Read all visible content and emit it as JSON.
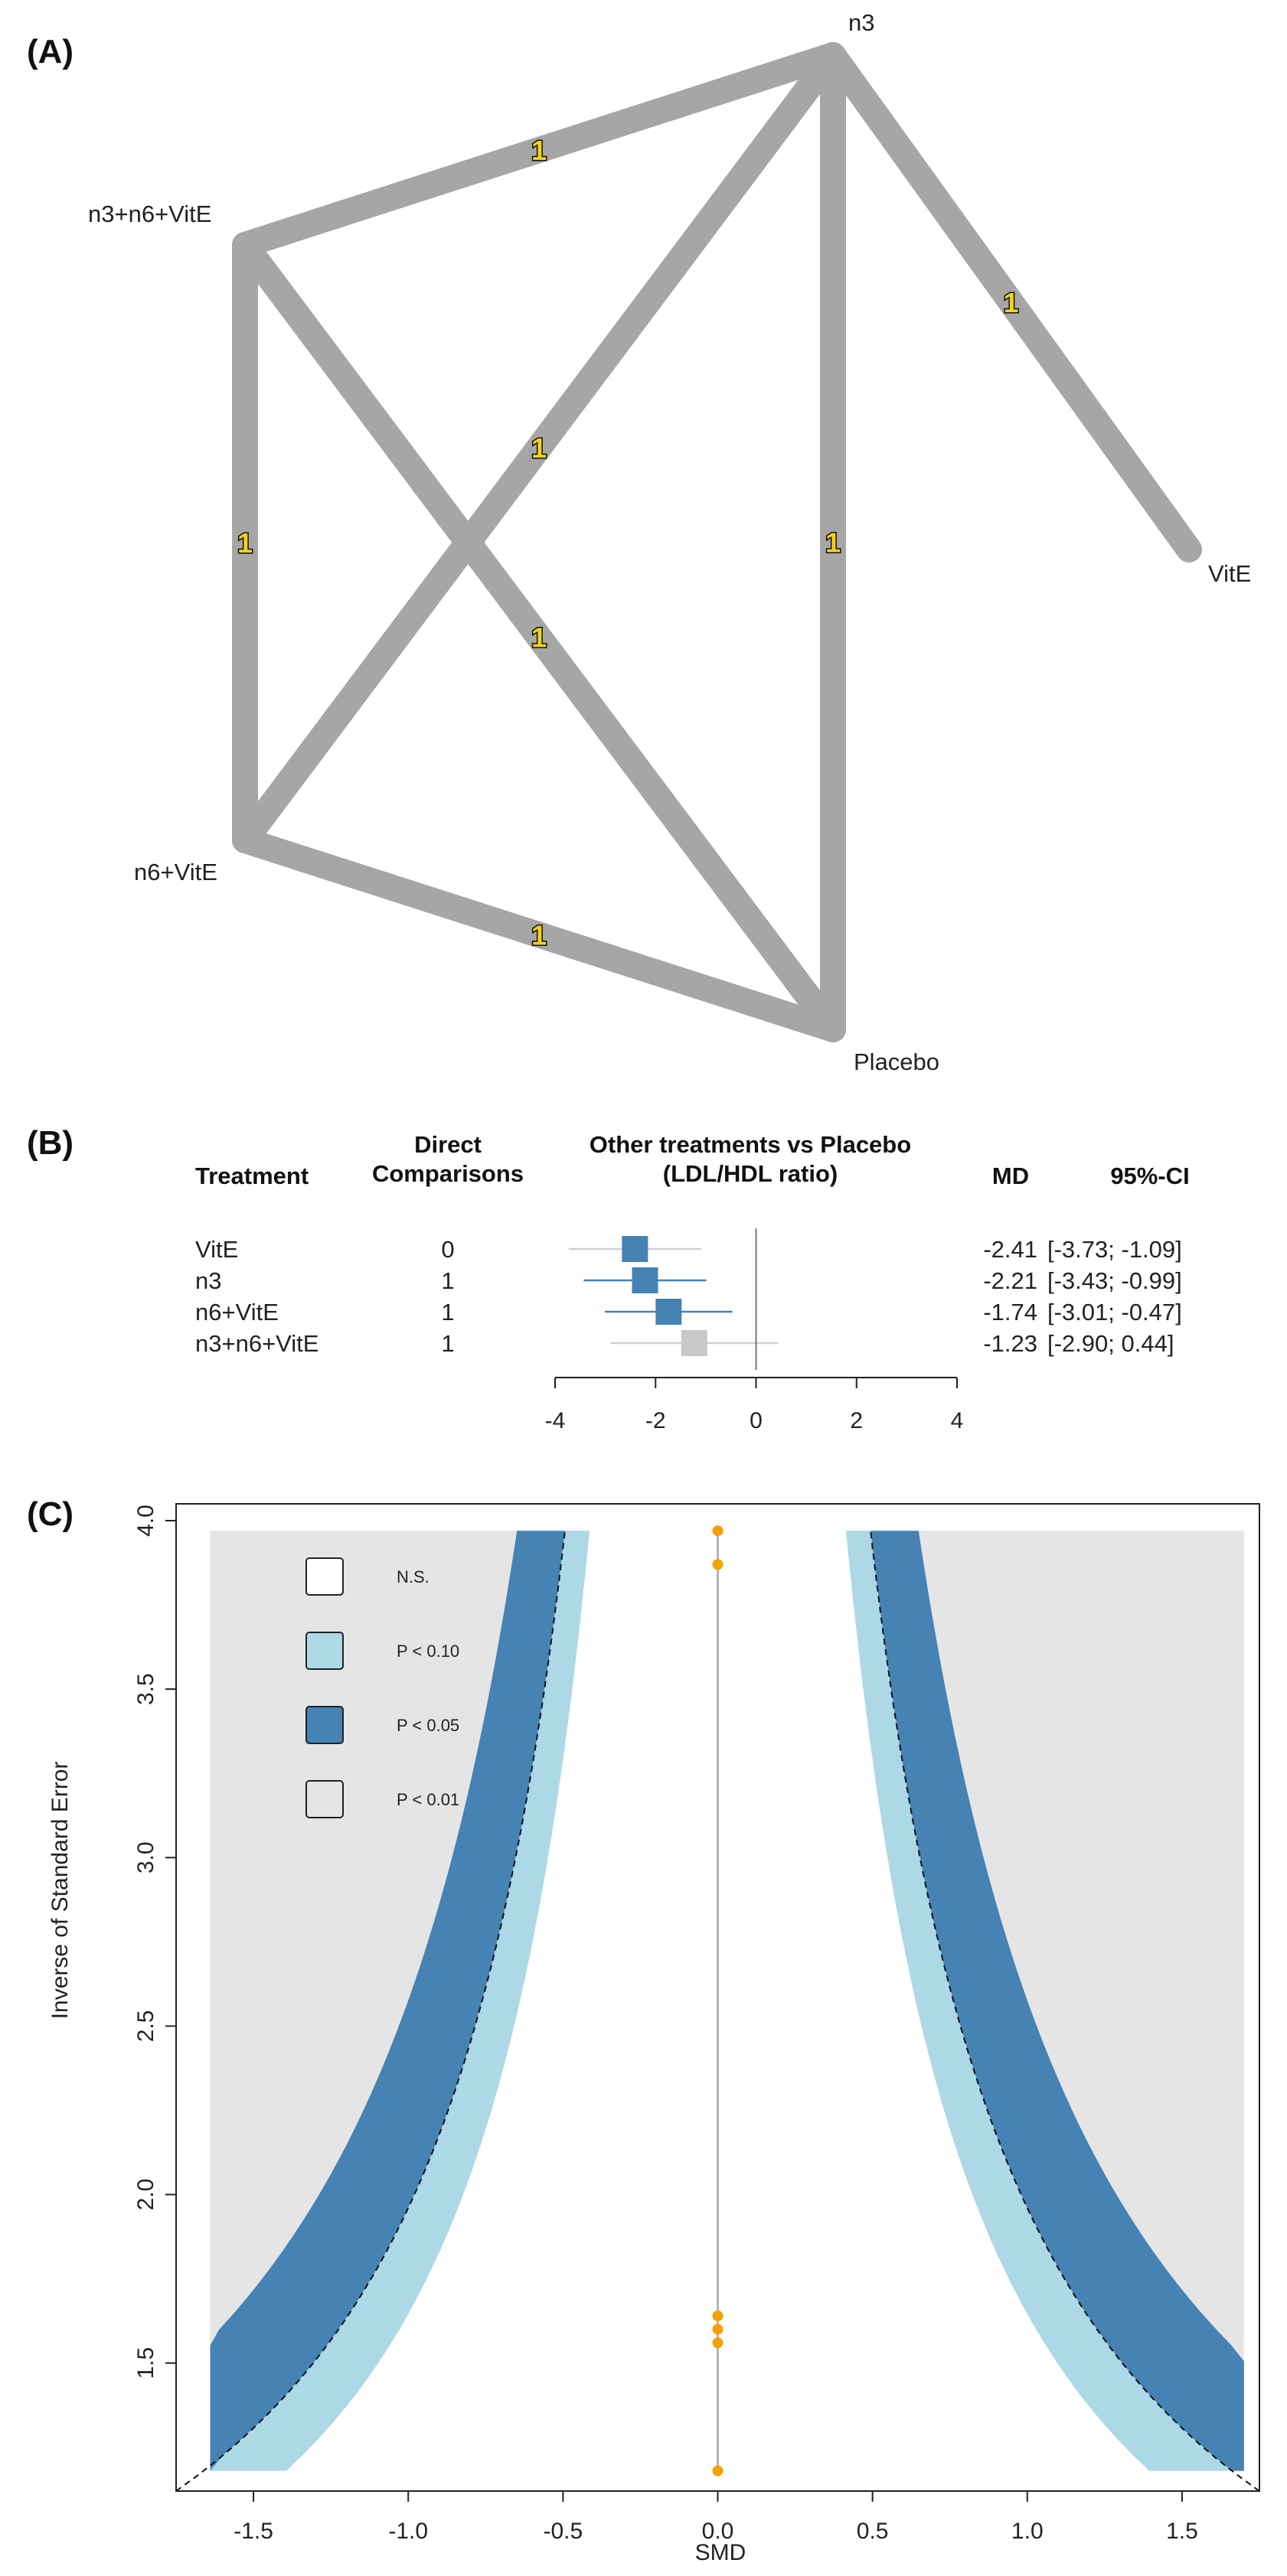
{
  "panels": {
    "a": "(A)",
    "b": "(B)",
    "c": "(C)"
  },
  "colors": {
    "edge": "#a6a6a6",
    "point_blue": "#4682b4",
    "point_grey": "#c8c8c8",
    "ci_blue": "#4682b4",
    "ci_grey": "#d0d0d0",
    "band_p10": "#add8e6",
    "band_p05": "#4682b4",
    "band_p01": "#e5e5e5",
    "study_point": "#f5a000",
    "count_fill": "#f2d21c"
  },
  "chart_data": [
    {
      "type": "network",
      "nodes": [
        "n3",
        "n3+n6+VitE",
        "VitE",
        "n6+VitE",
        "Placebo"
      ],
      "edges": [
        {
          "from": "n3+n6+VitE",
          "to": "n3",
          "studies": "1"
        },
        {
          "from": "n3",
          "to": "VitE",
          "studies": "1"
        },
        {
          "from": "n3",
          "to": "n6+VitE",
          "studies": "1"
        },
        {
          "from": "n3",
          "to": "Placebo",
          "studies": "1"
        },
        {
          "from": "n3+n6+VitE",
          "to": "n6+VitE",
          "studies": "1"
        },
        {
          "from": "n3+n6+VitE",
          "to": "Placebo",
          "studies": "1"
        },
        {
          "from": "n6+VitE",
          "to": "Placebo",
          "studies": "1"
        }
      ]
    },
    {
      "type": "forest",
      "headers": {
        "treatment": "Treatment",
        "direct_1": "Direct",
        "direct_2": "Comparisons",
        "effect_1": "Other treatments vs Placebo",
        "effect_2": "(LDL/HDL ratio)",
        "md": "MD",
        "ci": "95%-CI"
      },
      "xlim": [
        -4,
        4
      ],
      "ticks": [
        -4,
        -2,
        0,
        2,
        4
      ],
      "tick_labels": [
        "-4",
        "-2",
        "0",
        "2",
        "4"
      ],
      "reference": 0,
      "rows": [
        {
          "treatment": "VitE",
          "direct": "0",
          "md": -2.41,
          "lo": -3.73,
          "hi": -1.09,
          "md_text": "-2.41",
          "ci_text": "[-3.73; -1.09]",
          "color": "grey_ci"
        },
        {
          "treatment": "n3",
          "direct": "1",
          "md": -2.21,
          "lo": -3.43,
          "hi": -0.99,
          "md_text": "-2.21",
          "ci_text": "[-3.43; -0.99]",
          "color": "blue"
        },
        {
          "treatment": "n6+VitE",
          "direct": "1",
          "md": -1.74,
          "lo": -3.01,
          "hi": -0.47,
          "md_text": "-1.74",
          "ci_text": "[-3.01; -0.47]",
          "color": "blue"
        },
        {
          "treatment": "n3+n6+VitE",
          "direct": "1",
          "md": -1.23,
          "lo": -2.9,
          "hi": 0.44,
          "md_text": "-1.23",
          "ci_text": "[-2.90;  0.44]",
          "color": "grey"
        }
      ]
    },
    {
      "type": "contour_funnel",
      "xlabel": "SMD",
      "ylabel": "Inverse of Standard Error",
      "xlim": [
        -1.75,
        1.75
      ],
      "ylim": [
        1.12,
        4.05
      ],
      "xticks": [
        -1.5,
        -1.0,
        -0.5,
        0.0,
        0.5,
        1.0,
        1.5
      ],
      "xtick_labels": [
        "-1.5",
        "-1.0",
        "-0.5",
        "0.0",
        "0.5",
        "1.0",
        "1.5"
      ],
      "yticks": [
        1.5,
        2.0,
        2.5,
        3.0,
        3.5,
        4.0
      ],
      "ytick_labels": [
        "1.5",
        "2.0",
        "2.5",
        "3.0",
        "3.5",
        "4.0"
      ],
      "legend": [
        {
          "label": "N.S.",
          "color": "#ffffff"
        },
        {
          "label": "P < 0.10",
          "color": "#add8e6"
        },
        {
          "label": "P < 0.05",
          "color": "#4682b4"
        },
        {
          "label": "P < 0.01",
          "color": "#e5e5e5"
        }
      ],
      "points": [
        {
          "smd": 0.0,
          "precision": 3.97
        },
        {
          "smd": 0.0,
          "precision": 3.87
        },
        {
          "smd": 0.0,
          "precision": 1.64
        },
        {
          "smd": 0.0,
          "precision": 1.6
        },
        {
          "smd": 0.0,
          "precision": 1.56
        },
        {
          "smd": 0.0,
          "precision": 1.18
        }
      ]
    }
  ]
}
